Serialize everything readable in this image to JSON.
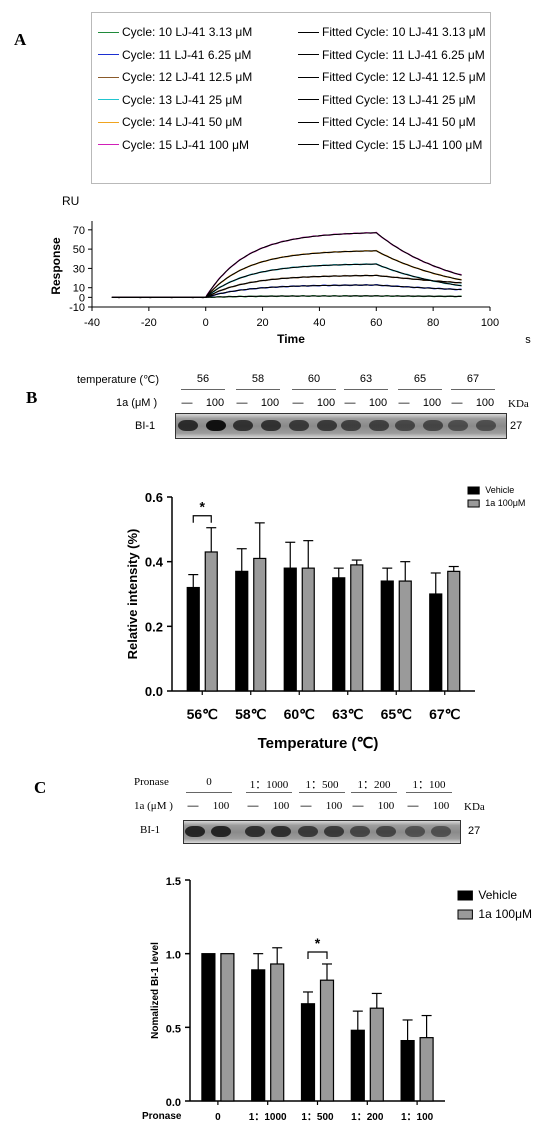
{
  "panels": {
    "a": "A",
    "b": "B",
    "c": "C"
  },
  "panelA": {
    "legend": {
      "raw": [
        {
          "cycle": "Cycle: 10",
          "compound": "LJ-41",
          "conc": "3.13 μM",
          "color": "#1f8a3a"
        },
        {
          "cycle": "Cycle: 11",
          "compound": "LJ-41",
          "conc": "6.25 μM",
          "color": "#1c2fd1"
        },
        {
          "cycle": "Cycle: 12",
          "compound": "LJ-41",
          "conc": "12.5 μM",
          "color": "#8a5a2a"
        },
        {
          "cycle": "Cycle: 13",
          "compound": "LJ-41",
          "conc": "25 μM",
          "color": "#21c5cf"
        },
        {
          "cycle": "Cycle: 14",
          "compound": "LJ-41",
          "conc": "50 μM",
          "color": "#f0a41f"
        },
        {
          "cycle": "Cycle: 15",
          "compound": "LJ-41",
          "conc": "100 μM",
          "color": "#d11fb8"
        }
      ],
      "fitted": [
        {
          "cycle": "Fitted Cycle: 10",
          "compound": "LJ-41",
          "conc": "3.13 μM"
        },
        {
          "cycle": "Fitted Cycle: 11",
          "compound": "LJ-41",
          "conc": "6.25 μM"
        },
        {
          "cycle": "Fitted Cycle: 12",
          "compound": "LJ-41",
          "conc": "12.5 μM"
        },
        {
          "cycle": "Fitted Cycle: 13",
          "compound": "LJ-41",
          "conc": "25 μM"
        },
        {
          "cycle": "Fitted Cycle: 14",
          "compound": "LJ-41",
          "conc": "50 μM"
        },
        {
          "cycle": "Fitted Cycle: 15",
          "compound": "LJ-41",
          "conc": "100 μM"
        }
      ]
    },
    "unit_label": "RU",
    "x_unit": "s"
  },
  "panelB": {
    "temperature_label": "temperature (℃)",
    "temps": [
      "56",
      "58",
      "60",
      "63",
      "65",
      "67"
    ],
    "compound_label": "1a (μM )",
    "vehicle_mark": "—",
    "dose_mark": "100",
    "kda_label": "KDa",
    "protein_label": "BI-1",
    "mw": "27"
  },
  "panelC": {
    "pronase_label": "Pronase",
    "ratios": [
      "0",
      "1：1000",
      "1：500",
      "1：200",
      "1：100"
    ],
    "compound_label": "1a (μM )",
    "vehicle_mark": "—",
    "dose_mark": "100",
    "kda_label": "KDa",
    "protein_label": "BI-1",
    "mw": "27"
  },
  "chart_data": [
    {
      "type": "line",
      "xlabel": "Time",
      "ylabel": "Response",
      "xlim": [
        -40,
        100
      ],
      "ylim": [
        -10,
        75
      ],
      "xticks": [
        -40,
        -20,
        0,
        20,
        40,
        60,
        80,
        100
      ],
      "yticks": [
        -10,
        0,
        10,
        30,
        50,
        70
      ],
      "injection_start": 0,
      "injection_end": 60,
      "series": [
        {
          "name": "Cycle: 10 LJ-41 3.13 μM",
          "color": "#1f8a3a",
          "plateau": 1.5,
          "end": 1
        },
        {
          "name": "Cycle: 11 LJ-41 6.25 μM",
          "color": "#1c2fd1",
          "plateau": 13,
          "end": 8
        },
        {
          "name": "Cycle: 12 LJ-41 12.5 μM",
          "color": "#8a5a2a",
          "plateau": 23,
          "end": 15
        },
        {
          "name": "Cycle: 13 LJ-41 25 μM",
          "color": "#21c5cf",
          "plateau": 35,
          "end": 12
        },
        {
          "name": "Cycle: 14 LJ-41 50 μM",
          "color": "#f0a41f",
          "plateau": 49,
          "end": 18
        },
        {
          "name": "Cycle: 15 LJ-41 100 μM",
          "color": "#d11fb8",
          "plateau": 68,
          "end": 23
        }
      ]
    },
    {
      "type": "bar",
      "xlabel": "Temperature (℃)",
      "ylabel": "Relative intensity (%)",
      "ylim": [
        0,
        0.6
      ],
      "yticks": [
        "0.0",
        "0.2",
        "0.4",
        "0.6"
      ],
      "categories": [
        "56℃",
        "58℃",
        "60℃",
        "63℃",
        "65℃",
        "67℃"
      ],
      "series": [
        {
          "name": "Vehicle",
          "color": "#000000",
          "values": [
            0.32,
            0.37,
            0.38,
            0.35,
            0.34,
            0.3
          ],
          "errors": [
            0.04,
            0.07,
            0.08,
            0.03,
            0.04,
            0.065
          ]
        },
        {
          "name": "1a 100μM",
          "color": "#9a9a9a",
          "values": [
            0.43,
            0.41,
            0.38,
            0.39,
            0.34,
            0.37
          ],
          "errors": [
            0.075,
            0.11,
            0.085,
            0.015,
            0.06,
            0.015
          ]
        }
      ],
      "significance": [
        {
          "category": "56℃",
          "label": "*"
        }
      ],
      "legend_position": "top-right"
    },
    {
      "type": "bar",
      "xlabel": "Pronase",
      "ylabel": "Nomalized BI-1 level",
      "ylim": [
        0,
        1.5
      ],
      "yticks": [
        "0.0",
        "0.5",
        "1.0",
        "1.5"
      ],
      "categories": [
        "0",
        "1：1000",
        "1：500",
        "1：200",
        "1：100"
      ],
      "series": [
        {
          "name": "Vehicle",
          "color": "#000000",
          "values": [
            1.0,
            0.89,
            0.66,
            0.48,
            0.41
          ],
          "errors": [
            0.0,
            0.11,
            0.08,
            0.13,
            0.14
          ]
        },
        {
          "name": "1a 100μM",
          "color": "#9a9a9a",
          "values": [
            1.0,
            0.93,
            0.82,
            0.63,
            0.43
          ],
          "errors": [
            0.0,
            0.11,
            0.11,
            0.1,
            0.15
          ]
        }
      ],
      "significance": [
        {
          "category": "1：500",
          "label": "*"
        }
      ],
      "legend_position": "top-right"
    }
  ]
}
